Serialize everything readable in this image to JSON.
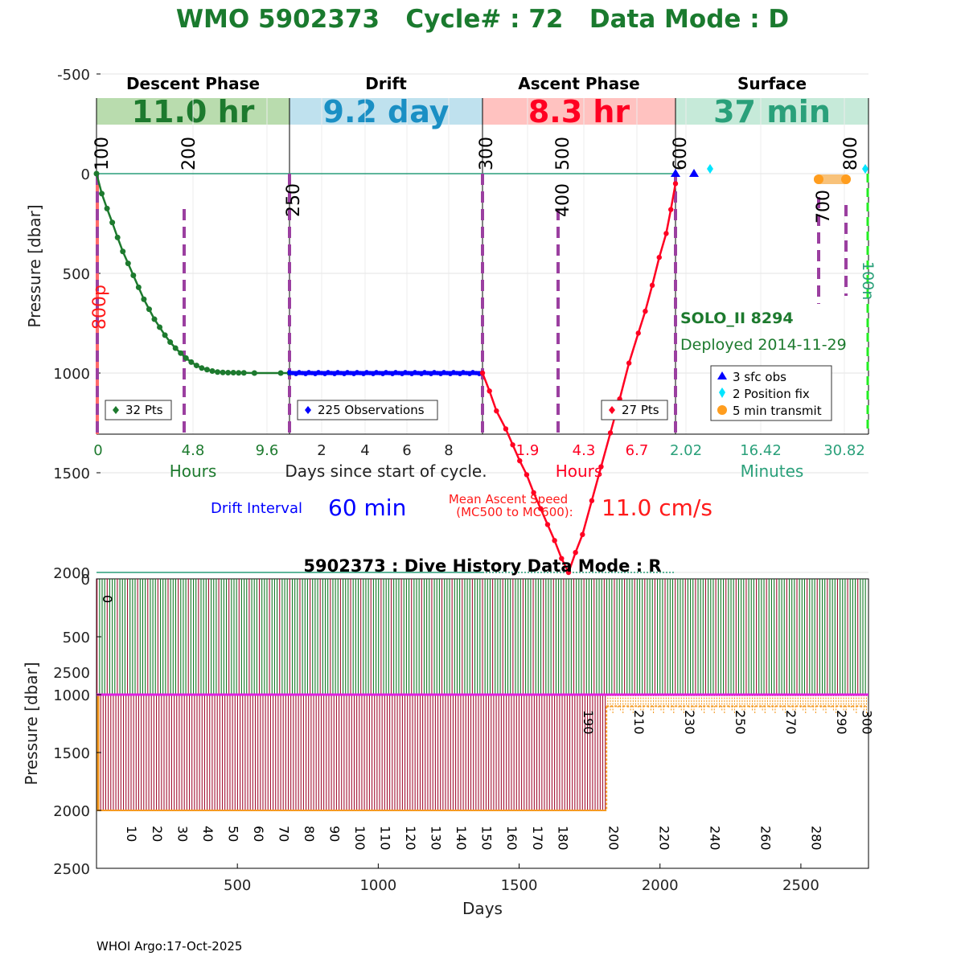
{
  "header": {
    "title": "WMO 5902373   Cycle# : 72   Data Mode : D"
  },
  "footer": {
    "credit": "WHOI Argo:17-Oct-2025"
  },
  "colors": {
    "title": "#1a7a2e",
    "descent": "#1d7a2e",
    "descent_band": "#b9dcae",
    "drift": "#0000ff",
    "drift_band": "#bfe1ee",
    "drift_text": "#1a8fc4",
    "ascent": "#ff0022",
    "ascent_band": "#ffc2c0",
    "surface": "#2aa07a",
    "surface_band": "#c6ead9",
    "marker_dash": "#9b3fa0",
    "transmit": "#ff9d1e",
    "position_fix": "#00e5ff",
    "history_green": "#137a26",
    "history_red": "#a31233",
    "history_orange": "#f59a22",
    "history_magenta": "#e020e0"
  },
  "chart_data": [
    {
      "type": "line",
      "ylabel": "Pressure [dbar]",
      "ylim": [
        2600,
        -600
      ],
      "yticks": [
        "-500",
        "0",
        "500",
        "1000",
        "1500",
        "2000",
        "2500"
      ],
      "grid": true,
      "phases": [
        {
          "name": "Descent Phase",
          "duration": "11.0 hr",
          "ticks": [
            "0",
            "4.8",
            "9.6"
          ],
          "axis_label": "Hours",
          "legend": "32 Pts"
        },
        {
          "name": "Drift",
          "duration": "9.2 day",
          "ticks": [
            "2",
            "4",
            "6",
            "8"
          ],
          "axis_label": "Days since start of cycle.",
          "legend": "225 Observations"
        },
        {
          "name": "Ascent Phase",
          "duration": "8.3 hr",
          "ticks": [
            "1.9",
            "4.3",
            "6.7"
          ],
          "axis_label": "Hours",
          "legend": "27 Pts"
        },
        {
          "name": "Surface",
          "duration": "37 min",
          "ticks": [
            "2.02",
            "16.42",
            "30.82"
          ],
          "axis_label": "Minutes",
          "legend": ""
        }
      ],
      "measurement_codes": [
        "100",
        "200",
        "250",
        "300",
        "400",
        "500",
        "600",
        "700",
        "800"
      ],
      "side_labels": {
        "left": "800p",
        "right": "100n"
      },
      "descent_profile": [
        [
          0,
          0
        ],
        [
          0.3,
          100
        ],
        [
          0.6,
          175
        ],
        [
          0.9,
          245
        ],
        [
          1.2,
          320
        ],
        [
          1.5,
          390
        ],
        [
          1.8,
          450
        ],
        [
          2.1,
          510
        ],
        [
          2.4,
          570
        ],
        [
          2.7,
          630
        ],
        [
          3.0,
          680
        ],
        [
          3.3,
          730
        ],
        [
          3.6,
          770
        ],
        [
          3.9,
          810
        ],
        [
          4.2,
          845
        ],
        [
          4.5,
          875
        ],
        [
          4.8,
          900
        ],
        [
          5.1,
          925
        ],
        [
          5.4,
          945
        ],
        [
          5.7,
          962
        ],
        [
          6.0,
          975
        ],
        [
          6.3,
          983
        ],
        [
          6.6,
          990
        ],
        [
          6.9,
          995
        ],
        [
          7.2,
          997
        ],
        [
          7.5,
          998
        ],
        [
          7.8,
          998
        ],
        [
          8.1,
          999
        ],
        [
          8.4,
          999
        ],
        [
          9.0,
          1000
        ],
        [
          10.5,
          1000
        ],
        [
          11.0,
          1000
        ]
      ],
      "drift_pressure": 1000,
      "ascent_profile": [
        [
          0,
          1000
        ],
        [
          0.3,
          1090
        ],
        [
          0.6,
          1190
        ],
        [
          1.0,
          1280
        ],
        [
          1.3,
          1360
        ],
        [
          1.6,
          1440
        ],
        [
          1.9,
          1510
        ],
        [
          2.2,
          1600
        ],
        [
          2.5,
          1680
        ],
        [
          2.8,
          1760
        ],
        [
          3.1,
          1840
        ],
        [
          3.4,
          1930
        ],
        [
          3.7,
          2000
        ],
        [
          4.0,
          1900
        ],
        [
          4.3,
          1810
        ],
        [
          4.7,
          1640
        ],
        [
          5.1,
          1470
        ],
        [
          5.5,
          1300
        ],
        [
          5.9,
          1130
        ],
        [
          6.3,
          950
        ],
        [
          6.7,
          800
        ],
        [
          7.0,
          690
        ],
        [
          7.3,
          560
        ],
        [
          7.6,
          420
        ],
        [
          7.9,
          300
        ],
        [
          8.1,
          180
        ],
        [
          8.3,
          50
        ]
      ],
      "surface_legend": [
        "3 sfc obs",
        "2 Position fix",
        "5 min transmit"
      ],
      "float_info": {
        "model": "SOLO_II 8294",
        "deployed": "Deployed 2014-11-29"
      },
      "drift_interval": {
        "label": "Drift Interval",
        "value": "60 min"
      },
      "ascent_speed": {
        "label_line1": "Mean Ascent Speed",
        "label_line2": "(MC500 to MC600):",
        "value": "11.0 cm/s"
      }
    },
    {
      "type": "bar",
      "title": "5902373 : Dive History      Data Mode : R",
      "xlabel": "Days",
      "ylabel": "Pressure [dbar]",
      "xlim": [
        0,
        2740
      ],
      "ylim": [
        2500,
        0
      ],
      "xticks": [
        "500",
        "1000",
        "1500",
        "2000",
        "2500"
      ],
      "yticks": [
        "0",
        "500",
        "1000",
        "1500",
        "2000",
        "2500"
      ],
      "cycle_count": 305,
      "park_pressure": 1000,
      "profile_pressure_early": 2000,
      "profile_pressure_late": 1100,
      "change_day": 1810,
      "cycle_labels_lower": [
        "10",
        "20",
        "30",
        "40",
        "50",
        "60",
        "70",
        "80",
        "90",
        "100",
        "110",
        "120",
        "130",
        "140",
        "150",
        "160",
        "170",
        "180",
        "200",
        "220",
        "240",
        "260",
        "280"
      ],
      "cycle_labels_upper": [
        "190",
        "210",
        "230",
        "250",
        "270",
        "290",
        "300"
      ],
      "first_cycle_label": "0"
    }
  ]
}
